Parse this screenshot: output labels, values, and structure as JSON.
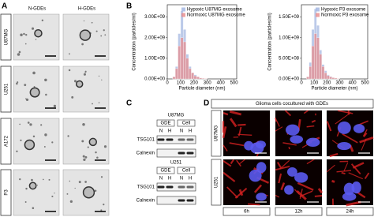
{
  "panel_labels": [
    "A",
    "B",
    "C",
    "D"
  ],
  "panel_a": {
    "columns": [
      "N-GDEs",
      "H-GDEs"
    ],
    "rows": [
      "U87MG",
      "U251",
      "A172",
      "P3"
    ]
  },
  "chart_data": [
    {
      "type": "histogram",
      "x_label": "Particle diameter (nm)",
      "y_label": "Concentration (particles/ml)",
      "legend": "top-right",
      "bins": [
        40,
        60,
        80,
        100,
        120,
        140,
        160,
        180,
        200,
        220,
        240,
        260,
        280,
        300
      ],
      "series": [
        {
          "name": "Hypoxic U87MG exosome",
          "color": "#9fb3e0",
          "values": [
            100000000,
            600000000,
            2200000000,
            3300000000,
            2400000000,
            1200000000,
            600000000,
            300000000,
            200000000,
            100000000,
            50000000,
            30000000,
            20000000
          ]
        },
        {
          "name": "Normoxic U87MG exosome",
          "color": "#e88a8a",
          "values": [
            100000000,
            500000000,
            1600000000,
            2000000000,
            1800000000,
            1000000000,
            500000000,
            300000000,
            150000000,
            100000000,
            50000000,
            30000000,
            20000000
          ]
        }
      ],
      "xlim": [
        0,
        520
      ],
      "xticks": [
        0,
        100,
        200,
        300,
        400,
        500
      ],
      "ylim": [
        0,
        3600000000
      ],
      "yticks": [
        {
          "value": 0,
          "label": "0.00E+00"
        },
        {
          "value": 1000000000,
          "label": "1.00E+09"
        },
        {
          "value": 2000000000,
          "label": "2.00E+09"
        },
        {
          "value": 3000000000,
          "label": "3.00E+09"
        }
      ]
    },
    {
      "type": "histogram",
      "x_label": "Particle diameter (nm)",
      "y_label": "Concentration (particles/ml)",
      "legend": "top-right",
      "bins": [
        40,
        60,
        80,
        100,
        120,
        140,
        160,
        180,
        200,
        220,
        240,
        260,
        280,
        300
      ],
      "series": [
        {
          "name": "Hypoxic P3 exosome",
          "color": "#9fb3e0",
          "values": [
            50000000,
            400000000,
            1200000000,
            1700000000,
            1300000000,
            700000000,
            350000000,
            200000000,
            100000000,
            60000000,
            30000000,
            20000000,
            10000000
          ]
        },
        {
          "name": "Normoxic P3 exosome",
          "color": "#e88a8a",
          "values": [
            50000000,
            300000000,
            800000000,
            1100000000,
            1000000000,
            600000000,
            300000000,
            150000000,
            80000000,
            50000000,
            30000000,
            20000000,
            10000000
          ]
        }
      ],
      "xlim": [
        0,
        520
      ],
      "xticks": [
        0,
        100,
        200,
        300,
        400,
        500
      ],
      "ylim": [
        0,
        1800000000
      ],
      "yticks": [
        {
          "value": 0,
          "label": "0.00E+00"
        },
        {
          "value": 500000000,
          "label": "5.00E+08"
        },
        {
          "value": 1000000000,
          "label": "1.00E+09"
        },
        {
          "value": 1500000000,
          "label": "1.50E+09"
        }
      ]
    }
  ],
  "panel_c": {
    "blots": [
      {
        "cell_line": "U87MG",
        "groups": [
          "GDE",
          "Cell"
        ],
        "lanes": [
          "N",
          "H",
          "N",
          "H"
        ],
        "proteins": [
          "TSG101",
          "Calnexin"
        ]
      },
      {
        "cell_line": "U251",
        "groups": [
          "GDE",
          "Cell"
        ],
        "lanes": [
          "N",
          "H",
          "N",
          "H"
        ],
        "proteins": [
          "TSG101",
          "Calnexin"
        ]
      }
    ]
  },
  "panel_d": {
    "title": "Glioma cells cocultured with GDEs",
    "rows": [
      "U87MG",
      "U251"
    ],
    "times": [
      "6h",
      "12h",
      "24h"
    ]
  }
}
